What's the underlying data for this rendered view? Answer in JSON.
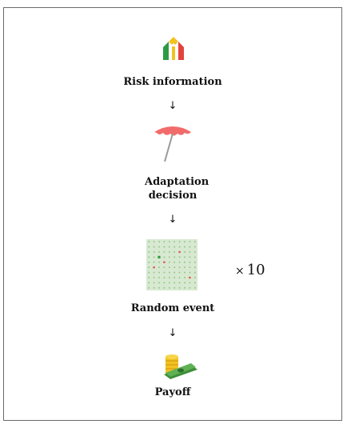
{
  "steps": [
    {
      "label": "Risk information",
      "icon": "risk-house-icon"
    },
    {
      "label": "Adaptation decision",
      "icon": "umbrella-icon"
    },
    {
      "label": "Random event",
      "icon": "grid-board-icon"
    },
    {
      "label": "Payoff",
      "icon": "money-coins-icon"
    }
  ],
  "arrow": "↓",
  "multiplier": {
    "symbol": "×",
    "value": "10"
  },
  "colors": {
    "umbrella": "#f26b6b",
    "grid": "#cfe5c8",
    "house_green": "#2e9a44",
    "house_yellow": "#f2c221",
    "house_red": "#e2433b"
  }
}
